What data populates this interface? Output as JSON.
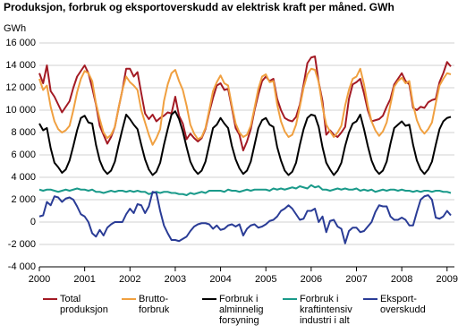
{
  "chart_data": {
    "type": "line",
    "title": "Produksjon, forbruk og eksportoverskudd av elektrisk kraft per måned. GWh",
    "y_label": "GWh",
    "categories": [
      "2000",
      null,
      null,
      null,
      null,
      null,
      null,
      null,
      null,
      null,
      null,
      null,
      "2001",
      null,
      null,
      null,
      null,
      null,
      null,
      null,
      null,
      null,
      null,
      null,
      "2002",
      null,
      null,
      null,
      null,
      null,
      null,
      null,
      null,
      null,
      null,
      null,
      "2003",
      null,
      null,
      null,
      null,
      null,
      null,
      null,
      null,
      null,
      null,
      null,
      "2004",
      null,
      null,
      null,
      null,
      null,
      null,
      null,
      null,
      null,
      null,
      null,
      "2005",
      null,
      null,
      null,
      null,
      null,
      null,
      null,
      null,
      null,
      null,
      null,
      "2006",
      null,
      null,
      null,
      null,
      null,
      null,
      null,
      null,
      null,
      null,
      null,
      "2007",
      null,
      null,
      null,
      null,
      null,
      null,
      null,
      null,
      null,
      null,
      null,
      "2008",
      null,
      null,
      null,
      null,
      null,
      null,
      null,
      null,
      null,
      null,
      null,
      "2009",
      null
    ],
    "ylim": [
      -4000,
      16000
    ],
    "yticks": [
      {
        "value": -4000,
        "label": "-4 000"
      },
      {
        "value": -2000,
        "label": "-2 000"
      },
      0,
      {
        "value": 2000,
        "label": "2 000"
      },
      {
        "value": 4000,
        "label": "4 000"
      },
      {
        "value": 6000,
        "label": "6 000"
      },
      {
        "value": 8000,
        "label": "8 000"
      },
      {
        "value": 10000,
        "label": "10 000"
      },
      {
        "value": 12000,
        "label": "12 000"
      },
      {
        "value": 14000,
        "label": "14 000"
      },
      {
        "value": 16000,
        "label": "16 000"
      }
    ],
    "grid": true,
    "series": [
      {
        "name": "Total produksjon",
        "color": "#a31a24",
        "values": [
          13300,
          12400,
          14000,
          11700,
          11200,
          10500,
          9800,
          10300,
          10800,
          12000,
          13000,
          13500,
          14000,
          13300,
          12000,
          10500,
          8600,
          7800,
          7000,
          7600,
          8500,
          10200,
          11800,
          13700,
          13700,
          13000,
          13400,
          11500,
          9700,
          9200,
          9600,
          9000,
          9300,
          9500,
          9800,
          9700,
          11200,
          9500,
          8800,
          7400,
          7900,
          7500,
          7200,
          7500,
          8300,
          9800,
          11100,
          12200,
          12400,
          11800,
          11900,
          10200,
          8400,
          7800,
          6400,
          7200,
          8300,
          10000,
          11400,
          12600,
          13000,
          12600,
          12800,
          11000,
          10000,
          9300,
          9100,
          9000,
          9400,
          10500,
          12300,
          14200,
          14700,
          14800,
          12500,
          10800,
          7800,
          8200,
          7800,
          7600,
          8000,
          8500,
          11000,
          12300,
          12500,
          12800,
          11500,
          10000,
          9000,
          9100,
          9200,
          9500,
          10300,
          11000,
          12300,
          12800,
          13300,
          12600,
          12300,
          10200,
          10000,
          10300,
          10200,
          10700,
          10900,
          11000,
          12500,
          13300,
          14300,
          13900
        ]
      },
      {
        "name": "Brutto-forbruk",
        "color": "#f0a040",
        "values": [
          12800,
          11800,
          12200,
          10300,
          9000,
          8300,
          8000,
          8200,
          8600,
          10000,
          11600,
          12800,
          13500,
          13300,
          12600,
          10600,
          9200,
          8000,
          7500,
          7800,
          8500,
          10200,
          11800,
          13000,
          12500,
          12200,
          11800,
          10000,
          8900,
          7800,
          6900,
          7500,
          8300,
          10800,
          12300,
          13300,
          13600,
          12600,
          11800,
          10400,
          8700,
          7900,
          7400,
          7600,
          8400,
          10000,
          11700,
          12500,
          13100,
          12400,
          12200,
          10400,
          8800,
          8000,
          7600,
          7800,
          8600,
          10200,
          11900,
          13000,
          13200,
          12500,
          12600,
          10500,
          9000,
          8100,
          7600,
          7800,
          8700,
          10300,
          12000,
          13200,
          13700,
          13600,
          12500,
          10300,
          8700,
          8100,
          7600,
          8000,
          8600,
          10400,
          11800,
          12800,
          13000,
          13700,
          12300,
          10400,
          9000,
          8200,
          7700,
          8100,
          8900,
          10500,
          12100,
          12600,
          12900,
          12400,
          12600,
          10500,
          9100,
          8300,
          7900,
          8300,
          8900,
          10600,
          12200,
          12800,
          13300,
          13200
        ]
      },
      {
        "name": "Forbruk i alminnelig forsyning",
        "color": "#000000",
        "values": [
          8800,
          8200,
          8400,
          6600,
          5300,
          4900,
          4400,
          4700,
          5500,
          6800,
          8200,
          9300,
          9500,
          8900,
          8800,
          6900,
          5500,
          4700,
          4300,
          4600,
          5400,
          6900,
          8300,
          9600,
          9200,
          8700,
          8300,
          6900,
          5600,
          4700,
          4200,
          4500,
          5300,
          6900,
          8300,
          9600,
          9900,
          9200,
          8100,
          6700,
          5400,
          4700,
          4300,
          4600,
          5400,
          6900,
          8400,
          8700,
          9300,
          8800,
          8400,
          6800,
          5600,
          4800,
          4300,
          4600,
          5400,
          6900,
          8400,
          9100,
          9300,
          8700,
          8500,
          6700,
          5500,
          4600,
          4200,
          4500,
          5300,
          6900,
          8300,
          9300,
          9600,
          9500,
          8500,
          6700,
          5300,
          4700,
          4200,
          4600,
          5300,
          6800,
          8000,
          8800,
          9000,
          9600,
          8300,
          6800,
          5500,
          4700,
          4300,
          4600,
          5400,
          7000,
          8400,
          8700,
          9000,
          8600,
          8700,
          6900,
          5500,
          4700,
          4300,
          4700,
          5400,
          6900,
          8300,
          9000,
          9300,
          9400
        ]
      },
      {
        "name": "Forbruk i kraftintensiv industri i alt",
        "color": "#1a9a8a",
        "values": [
          2900,
          2800,
          2900,
          2900,
          2800,
          2700,
          2800,
          2900,
          2800,
          2900,
          3000,
          2900,
          2900,
          2800,
          2900,
          2700,
          2700,
          2600,
          2700,
          2800,
          2700,
          2800,
          2800,
          2700,
          2800,
          2700,
          2800,
          2700,
          2700,
          2500,
          2600,
          2700,
          2600,
          2700,
          2700,
          2600,
          2600,
          2500,
          2500,
          2400,
          2600,
          2500,
          2600,
          2700,
          2600,
          2800,
          2800,
          2800,
          2800,
          2700,
          2900,
          2800,
          2800,
          2700,
          2800,
          2900,
          2800,
          2900,
          2900,
          2900,
          2900,
          2800,
          3000,
          2900,
          3000,
          2900,
          3000,
          3100,
          3000,
          3200,
          3100,
          3000,
          3300,
          3100,
          3200,
          2900,
          2900,
          2800,
          2900,
          3000,
          2900,
          3000,
          2900,
          2900,
          3000,
          2800,
          2900,
          2800,
          2900,
          2700,
          2800,
          2900,
          2800,
          2900,
          2900,
          2800,
          2900,
          2800,
          2800,
          2700,
          2800,
          2700,
          2800,
          2800,
          2700,
          2800,
          2800,
          2700,
          2700,
          2600
        ]
      },
      {
        "name": "Eksport-overskudd",
        "color": "#2a3c96",
        "values": [
          500,
          600,
          1800,
          1500,
          2300,
          2200,
          1800,
          2100,
          2200,
          2000,
          1400,
          700,
          500,
          0,
          -1000,
          -1300,
          -700,
          -1200,
          -500,
          -200,
          0,
          0,
          0,
          700,
          1200,
          800,
          1600,
          1500,
          800,
          1400,
          2700,
          2600,
          1000,
          -300,
          -1000,
          -1600,
          -1600,
          -1700,
          -1500,
          -1300,
          -800,
          -400,
          -200,
          -100,
          -100,
          -200,
          -600,
          -300,
          -700,
          -600,
          -300,
          -200,
          -400,
          -200,
          -1200,
          -600,
          -300,
          -200,
          -500,
          -400,
          -200,
          100,
          200,
          500,
          1000,
          1200,
          1500,
          1200,
          700,
          200,
          300,
          1000,
          1000,
          1200,
          0,
          500,
          -900,
          100,
          200,
          -400,
          -600,
          -1900,
          -800,
          -500,
          -500,
          -900,
          -800,
          -400,
          0,
          900,
          1500,
          1400,
          1400,
          500,
          200,
          200,
          400,
          200,
          -300,
          -300,
          900,
          2000,
          2300,
          2400,
          2000,
          400,
          300,
          500,
          1000,
          600
        ]
      }
    ]
  }
}
